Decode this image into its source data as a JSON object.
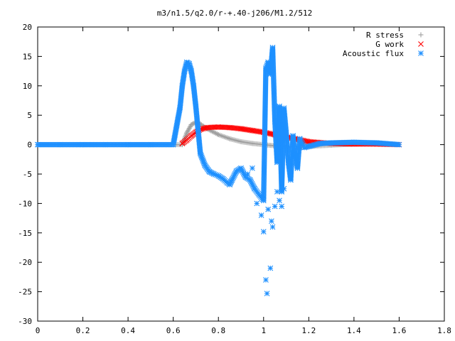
{
  "chart_data": {
    "type": "scatter",
    "title": "m3/n1.5/q2.0/r-+.40-j206/M1.2/512",
    "xlabel": "",
    "ylabel": "",
    "xlim": [
      0,
      1.8
    ],
    "ylim": [
      -30,
      20
    ],
    "x_ticks": [
      0,
      0.2,
      0.4,
      0.6,
      0.8,
      1,
      1.2,
      1.4,
      1.6,
      1.8
    ],
    "x_tick_labels": [
      "0",
      "0.2",
      "0.4",
      "0.6",
      "0.8",
      "1",
      "1.2",
      "1.4",
      "1.6",
      "1.8"
    ],
    "y_ticks": [
      -30,
      -25,
      -20,
      -15,
      -10,
      -5,
      0,
      5,
      10,
      15,
      20
    ],
    "y_tick_labels": [
      "-30",
      "-25",
      "-20",
      "-15",
      "-10",
      "-5",
      "0",
      "5",
      "10",
      "15",
      "20"
    ],
    "grid": false,
    "legend_position": "top-right",
    "series": [
      {
        "name": "R stress",
        "marker": "plus",
        "color": "#a0a0a0",
        "x": [
          0,
          0.1,
          0.2,
          0.3,
          0.4,
          0.5,
          0.6,
          0.64,
          0.66,
          0.68,
          0.7,
          0.72,
          0.75,
          0.8,
          0.85,
          0.9,
          0.95,
          1.0,
          1.05,
          1.1,
          1.15,
          1.2,
          1.3,
          1.4,
          1.5,
          1.6
        ],
        "y": [
          0,
          0,
          0,
          0,
          0,
          0,
          0,
          0,
          2.0,
          3.4,
          3.8,
          3.5,
          2.7,
          1.7,
          1.0,
          0.5,
          0.2,
          0.0,
          -0.2,
          -0.3,
          -0.4,
          -0.3,
          -0.1,
          0.1,
          0.2,
          0
        ]
      },
      {
        "name": "G work",
        "marker": "cross",
        "color": "#ff0000",
        "x": [
          0.64,
          0.66,
          0.68,
          0.7,
          0.72,
          0.75,
          0.8,
          0.85,
          0.9,
          0.95,
          1.0,
          1.05,
          1.1,
          1.15,
          1.2,
          1.3,
          1.4,
          1.5,
          1.6
        ],
        "y": [
          0.2,
          0.8,
          1.5,
          2.1,
          2.6,
          2.9,
          3.0,
          2.9,
          2.7,
          2.4,
          2.1,
          1.7,
          1.3,
          0.9,
          0.5,
          0.2,
          0.1,
          0.1,
          0
        ]
      },
      {
        "name": "Acoustic flux",
        "marker": "star",
        "color": "#1e90ff",
        "x": [
          0,
          0.1,
          0.2,
          0.3,
          0.4,
          0.5,
          0.6,
          0.63,
          0.64,
          0.65,
          0.66,
          0.67,
          0.68,
          0.69,
          0.7,
          0.71,
          0.72,
          0.74,
          0.76,
          0.78,
          0.8,
          0.82,
          0.84,
          0.85,
          0.86,
          0.88,
          0.9,
          0.92,
          0.94,
          0.96,
          0.98,
          1.0,
          1.01,
          1.02,
          1.03,
          1.04,
          1.05,
          1.06,
          1.07,
          1.08,
          1.09,
          1.1,
          1.11,
          1.12,
          1.13,
          1.14,
          1.15,
          1.16,
          1.18,
          1.2,
          1.25,
          1.3,
          1.4,
          1.5,
          1.6,
          1.0,
          1.01,
          1.015,
          1.02,
          1.03,
          1.035,
          1.04,
          1.05,
          1.06,
          1.07,
          1.08,
          1.09,
          0.99,
          0.97,
          0.93,
          0.95
        ],
        "y": [
          0,
          0,
          0,
          0,
          0,
          0,
          0,
          6.3,
          10,
          12.5,
          14.0,
          13.8,
          12.5,
          10.0,
          6.5,
          2.5,
          -1.5,
          -3.5,
          -4.6,
          -5.0,
          -5.3,
          -5.8,
          -6.5,
          -6.8,
          -6.0,
          -4.5,
          -4.0,
          -5.5,
          -6.0,
          -7.5,
          -8.5,
          -9.5,
          13.0,
          14.0,
          12.0,
          16.5,
          4.0,
          -3.0,
          6.5,
          -8.0,
          6.2,
          2.0,
          -3.0,
          -6.0,
          1.5,
          -2.0,
          -4.0,
          1.0,
          -0.5,
          -0.3,
          0.2,
          0.3,
          0.4,
          0.3,
          0,
          -14.8,
          -23.0,
          -25.3,
          -11.0,
          -21.0,
          -13.0,
          -14.0,
          -10.5,
          -8.0,
          -9.5,
          -10.5,
          -7.5,
          -12.0,
          -10.0,
          -5.0,
          -4.0
        ]
      }
    ]
  }
}
